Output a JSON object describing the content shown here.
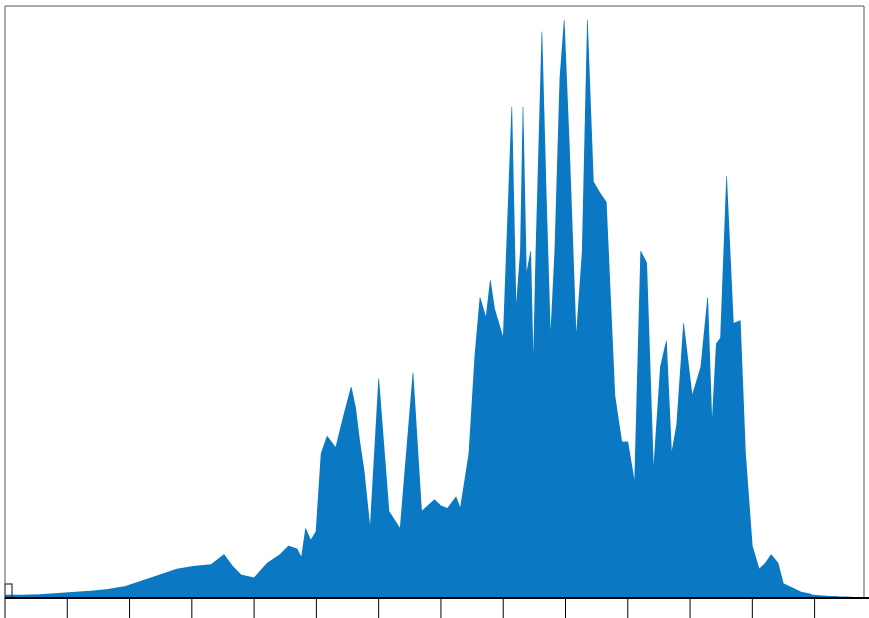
{
  "chart_data": {
    "type": "area",
    "title": "",
    "xlabel": "",
    "ylabel": "",
    "grid": false,
    "legend": "none",
    "xlim": [
      0,
      1000
    ],
    "ylim": [
      0,
      100
    ],
    "x_major_ticks": [
      0,
      72.5,
      145,
      217.5,
      290,
      362.5,
      435,
      507.5,
      580,
      652.5,
      725,
      797.5,
      870,
      942.5
    ],
    "colors": {
      "fill": "#0a78c2",
      "axis": "#000000",
      "frame": "#555555",
      "marker": "#333333"
    },
    "series": [
      {
        "x": [
          0,
          20,
          40,
          60,
          80,
          100,
          120,
          140,
          160,
          180,
          200,
          220,
          240,
          255,
          265,
          275,
          290,
          305,
          320,
          330,
          340,
          345,
          350,
          356,
          362,
          368,
          375,
          385,
          395,
          403,
          408,
          413,
          418,
          425,
          435,
          447,
          460,
          475,
          485,
          500,
          507,
          515,
          525,
          530,
          540,
          547,
          553,
          560,
          565,
          570,
          580,
          590,
          595,
          600,
          603,
          607,
          612,
          615,
          618,
          625,
          630,
          635,
          640,
          646,
          651,
          657,
          665,
          672,
          678,
          685,
          693,
          700,
          710,
          718,
          725,
          733,
          740,
          747,
          755,
          763,
          770,
          776,
          782,
          790,
          800,
          810,
          818,
          823,
          828,
          833,
          840,
          848,
          856,
          862,
          870,
          878,
          885,
          892,
          900,
          906,
          913,
          920,
          927,
          935,
          941,
          950,
          960,
          967,
          972,
          980,
          990,
          1000
        ],
        "y": [
          0.5,
          0.5,
          0.6,
          0.8,
          1.0,
          1.2,
          1.5,
          2.0,
          3.0,
          4.0,
          5.0,
          5.5,
          5.8,
          7.5,
          5.5,
          4.0,
          3.5,
          6.0,
          7.5,
          9.0,
          8.5,
          7.0,
          12.0,
          10.0,
          11.5,
          25.0,
          28.0,
          26.0,
          32.0,
          36.5,
          33.0,
          27.0,
          22.0,
          12.0,
          38.0,
          15.0,
          12.0,
          39.0,
          15.0,
          17.0,
          16.0,
          15.5,
          17.5,
          15.5,
          25.0,
          42.0,
          52.0,
          48.5,
          55.0,
          50.0,
          45.0,
          85.0,
          50.0,
          60.0,
          85.0,
          56.0,
          60.0,
          40.0,
          60.0,
          98.0,
          70.0,
          45.0,
          60.0,
          90.0,
          100.0,
          78.0,
          45.0,
          60.0,
          100.0,
          72.0,
          70.0,
          68.5,
          35.0,
          27.0,
          27.0,
          20.0,
          60.0,
          58.0,
          22.0,
          40.0,
          44.5,
          25.0,
          30.0,
          47.5,
          35.0,
          40.0,
          52.0,
          30.0,
          44.0,
          45.0,
          73.0,
          47.5,
          48.0,
          25.0,
          9.0,
          5.0,
          6.0,
          7.5,
          6.0,
          2.5,
          2.0,
          1.5,
          1.0,
          0.8,
          0.5,
          0.4,
          0.3,
          0.3,
          0.2,
          0.2,
          0.1,
          0.1
        ]
      }
    ]
  }
}
